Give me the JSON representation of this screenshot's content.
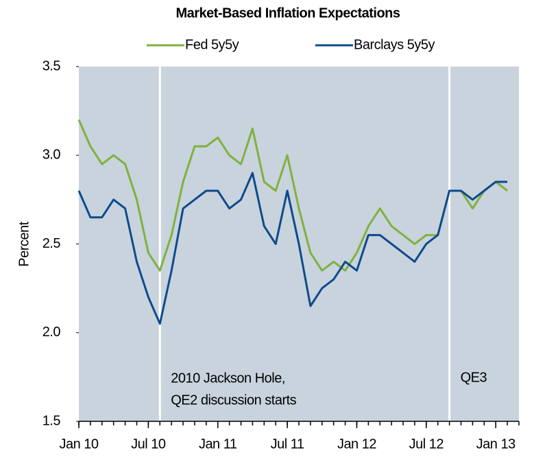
{
  "chart_data": {
    "type": "line",
    "title": "Market-Based Inflation Expectations",
    "y_label": "Percent",
    "x": [
      "2010-01",
      "2010-02",
      "2010-03",
      "2010-04",
      "2010-05",
      "2010-06",
      "2010-07",
      "2010-08",
      "2010-09",
      "2010-10",
      "2010-11",
      "2010-12",
      "2011-01",
      "2011-02",
      "2011-03",
      "2011-04",
      "2011-05",
      "2011-06",
      "2011-07",
      "2011-08",
      "2011-09",
      "2011-10",
      "2011-11",
      "2011-12",
      "2012-01",
      "2012-02",
      "2012-03",
      "2012-04",
      "2012-05",
      "2012-06",
      "2012-07",
      "2012-08",
      "2012-09",
      "2012-10",
      "2012-11",
      "2012-12",
      "2013-01",
      "2013-02"
    ],
    "series": [
      {
        "name": "Fed 5y5y",
        "color": "#7fb13e",
        "values": [
          3.2,
          3.05,
          2.95,
          3.0,
          2.95,
          2.75,
          2.45,
          2.35,
          2.55,
          2.85,
          3.05,
          3.05,
          3.1,
          3.0,
          2.95,
          3.15,
          2.85,
          2.8,
          3.0,
          2.7,
          2.45,
          2.35,
          2.4,
          2.35,
          2.45,
          2.6,
          2.7,
          2.6,
          2.55,
          2.5,
          2.55,
          2.55,
          2.8,
          2.8,
          2.7,
          2.8,
          2.85,
          2.8
        ]
      },
      {
        "name": "Barclays 5y5y",
        "color": "#0d4a8c",
        "values": [
          2.8,
          2.65,
          2.65,
          2.75,
          2.7,
          2.4,
          2.2,
          2.05,
          2.35,
          2.7,
          2.75,
          2.8,
          2.8,
          2.7,
          2.75,
          2.9,
          2.6,
          2.5,
          2.8,
          2.5,
          2.15,
          2.25,
          2.3,
          2.4,
          2.35,
          2.55,
          2.55,
          2.5,
          2.45,
          2.4,
          2.5,
          2.55,
          2.8,
          2.8,
          2.75,
          2.8,
          2.85,
          2.85
        ]
      }
    ],
    "xlim": [
      "2010-01",
      "2013-03"
    ],
    "xticks": [
      {
        "value": "2010-01",
        "label": "Jan 10"
      },
      {
        "value": "2010-07",
        "label": "Jul 10"
      },
      {
        "value": "2011-01",
        "label": "Jan 11"
      },
      {
        "value": "2011-07",
        "label": "Jul 11"
      },
      {
        "value": "2012-01",
        "label": "Jan 12"
      },
      {
        "value": "2012-07",
        "label": "Jul 12"
      },
      {
        "value": "2013-01",
        "label": "Jan 13"
      }
    ],
    "ylim": [
      1.5,
      3.5
    ],
    "yticks": [
      1.5,
      {
        "value": 2,
        "label": "2.0"
      },
      2.5,
      {
        "value": 3,
        "label": "3.0"
      },
      3.5
    ],
    "events": [
      {
        "x": "2010-08",
        "label": [
          "2010 Jackson Hole,",
          "QE2 discussion starts"
        ]
      },
      {
        "x": "2012-09",
        "label": [
          "QE3"
        ]
      }
    ]
  }
}
